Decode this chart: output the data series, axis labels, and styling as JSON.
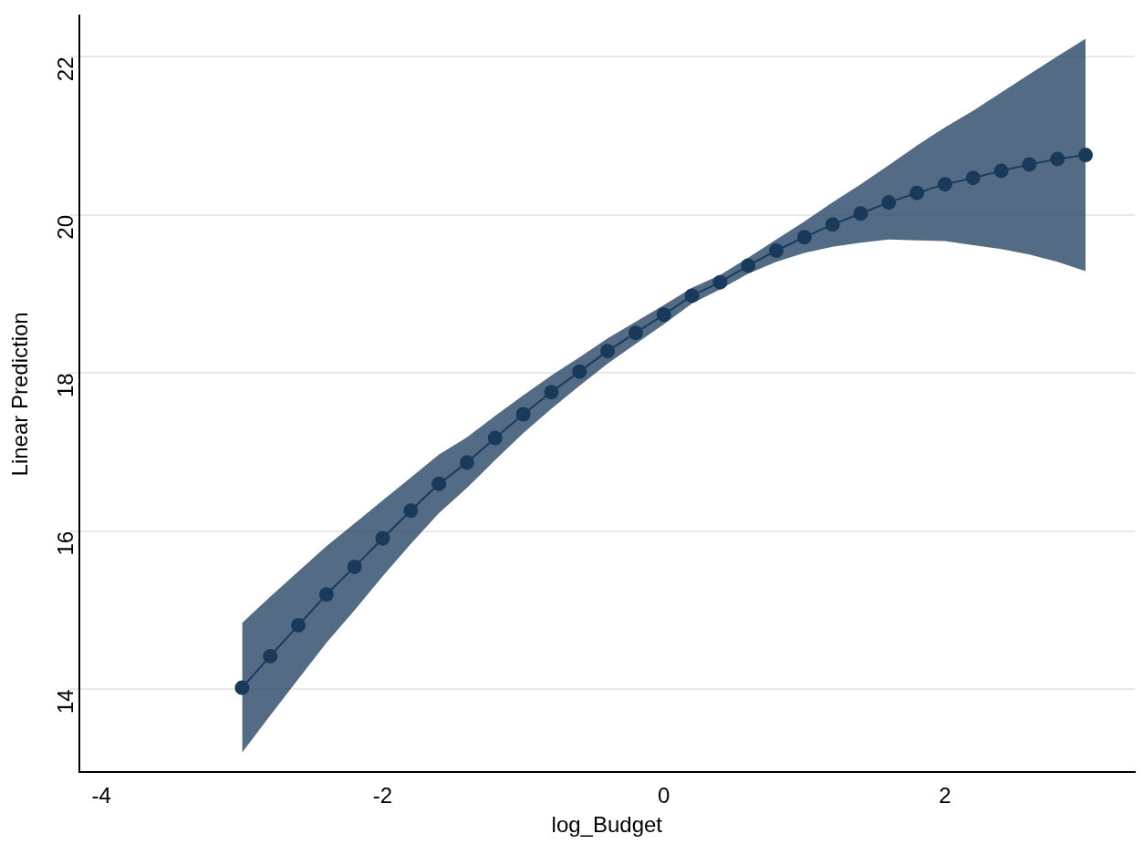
{
  "chart_data": {
    "type": "line",
    "xlabel": "log_Budget",
    "ylabel": "Linear Prediction",
    "xlim": [
      -4.16,
      3.35
    ],
    "xticks": [
      -4,
      -2,
      0,
      2
    ],
    "ylim": [
      12.95,
      22.52
    ],
    "yticks": [
      14,
      16,
      18,
      20,
      22
    ],
    "grid": "y",
    "legend": false,
    "marker": "circle",
    "line_style": "solid",
    "series": [
      {
        "color": "#1a3a5c",
        "x": [
          -3,
          -2.8,
          -2.6,
          -2.4,
          -2.2,
          -2,
          -1.8,
          -1.6,
          -1.4,
          -1.2,
          -1,
          -0.8,
          -0.6,
          -0.4,
          -0.2,
          0,
          0.2,
          0.4,
          0.6,
          0.8,
          1,
          1.2,
          1.4,
          1.6,
          1.8,
          2,
          2.2,
          2.4,
          2.6,
          2.8,
          3
        ],
        "values": [
          14.02,
          14.42,
          14.81,
          15.2,
          15.55,
          15.91,
          16.26,
          16.6,
          16.87,
          17.18,
          17.48,
          17.76,
          18.02,
          18.28,
          18.51,
          18.74,
          18.98,
          19.15,
          19.36,
          19.55,
          19.72,
          19.88,
          20.02,
          20.16,
          20.28,
          20.39,
          20.47,
          20.56,
          20.64,
          20.71,
          20.76
        ],
        "upper": [
          14.84,
          15.17,
          15.49,
          15.81,
          16.1,
          16.39,
          16.68,
          16.97,
          17.19,
          17.46,
          17.72,
          17.97,
          18.2,
          18.44,
          18.65,
          18.86,
          19.08,
          19.24,
          19.46,
          19.69,
          19.92,
          20.16,
          20.39,
          20.63,
          20.88,
          21.11,
          21.32,
          21.55,
          21.78,
          22.01,
          22.23
        ],
        "lower": [
          13.2,
          13.67,
          14.13,
          14.59,
          15.0,
          15.43,
          15.84,
          16.23,
          16.55,
          16.9,
          17.24,
          17.55,
          17.84,
          18.12,
          18.37,
          18.62,
          18.88,
          19.06,
          19.26,
          19.41,
          19.52,
          19.6,
          19.65,
          19.69,
          19.68,
          19.67,
          19.62,
          19.57,
          19.5,
          19.41,
          19.29
        ]
      }
    ]
  }
}
